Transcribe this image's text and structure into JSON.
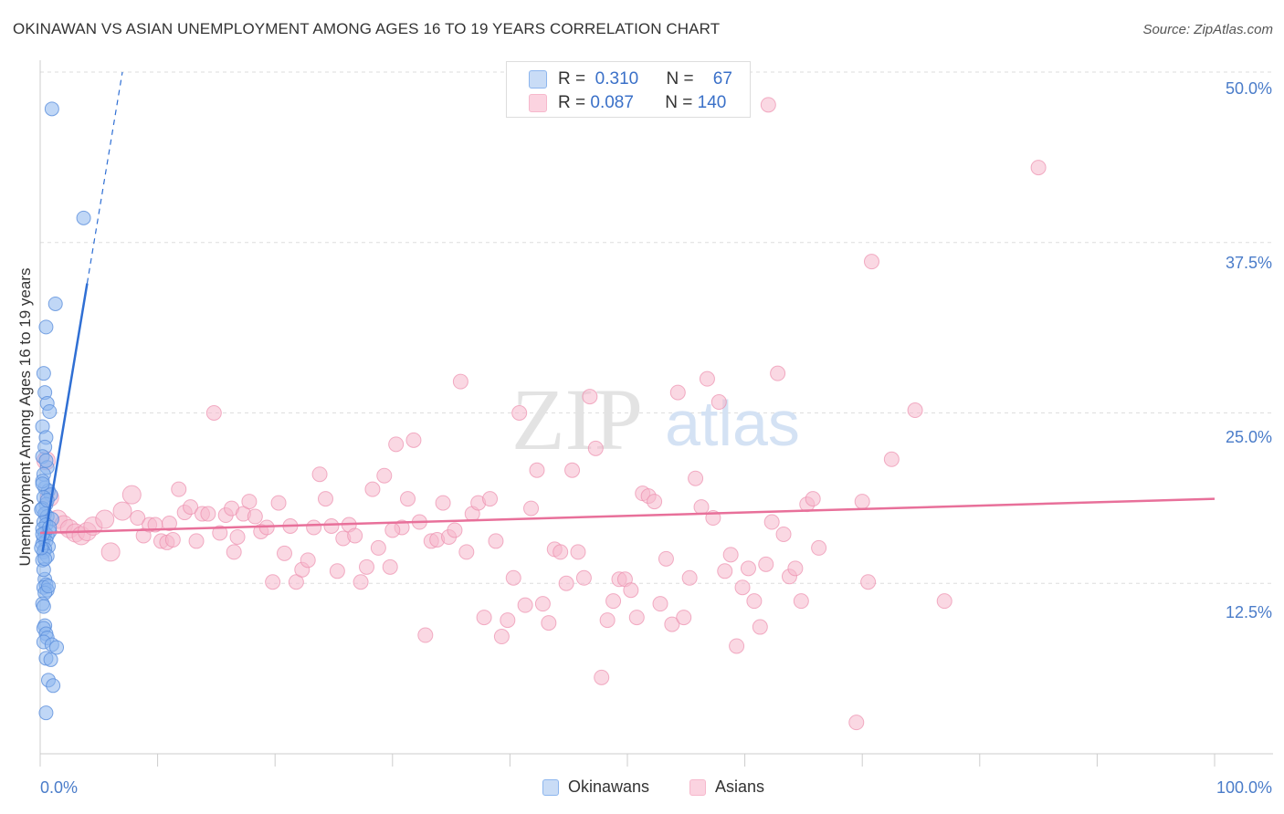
{
  "header": {
    "title": "OKINAWAN VS ASIAN UNEMPLOYMENT AMONG AGES 16 TO 19 YEARS CORRELATION CHART",
    "source": "Source: ZipAtlas.com"
  },
  "watermark": {
    "zip": "ZIP",
    "atlas": "atlas"
  },
  "legend_top": {
    "rows": [
      {
        "r_label": "R =",
        "r_value": "0.310",
        "n_label": "N =",
        "n_value": "67",
        "color": "#8db6ee"
      },
      {
        "r_label": "R =",
        "r_value": "0.087",
        "n_label": "N =",
        "n_value": "140",
        "color": "#f6b8cc"
      }
    ]
  },
  "legend_bottom": {
    "items": [
      {
        "label": "Okinawans",
        "color": "#8db6ee"
      },
      {
        "label": "Asians",
        "color": "#f6b8cc"
      }
    ]
  },
  "colors": {
    "okinawan_fill": "#8db6ee",
    "okinawan_stroke": "#5b8fdc",
    "okinawan_line": "#2f6fd4",
    "asian_fill": "#f6b8cc",
    "asian_stroke": "#ec8fae",
    "asian_line": "#e8709a",
    "tick_label": "#4a7cc9",
    "grid": "#dddddd"
  },
  "chart_data": {
    "type": "scatter",
    "title": "OKINAWAN VS ASIAN UNEMPLOYMENT AMONG AGES 16 TO 19 YEARS CORRELATION CHART",
    "xlabel": "",
    "ylabel": "Unemployment Among Ages 16 to 19 years",
    "xlim": [
      0,
      100
    ],
    "ylim": [
      0,
      50
    ],
    "x_tick_labels": [
      "0.0%",
      "100.0%"
    ],
    "y_ticks": [
      12.5,
      25.0,
      37.5,
      50.0
    ],
    "y_tick_labels": [
      "12.5%",
      "25.0%",
      "37.5%",
      "50.0%"
    ],
    "grid": true,
    "series": [
      {
        "name": "Okinawans",
        "r": 0.31,
        "n": 67,
        "trend": {
          "x0": 0.2,
          "y0": 14.8,
          "x1": 4.0,
          "y1": 34.5,
          "dash_to": {
            "x": 7.0,
            "y": 50.0
          }
        },
        "points": [
          [
            1.0,
            47.3
          ],
          [
            3.7,
            39.3
          ],
          [
            1.3,
            33.0
          ],
          [
            0.5,
            31.3
          ],
          [
            0.3,
            27.9
          ],
          [
            0.4,
            26.5
          ],
          [
            0.6,
            25.7
          ],
          [
            0.8,
            25.1
          ],
          [
            0.2,
            24.0
          ],
          [
            0.5,
            23.2
          ],
          [
            0.4,
            22.5
          ],
          [
            0.2,
            21.8
          ],
          [
            0.6,
            21.0
          ],
          [
            0.3,
            20.5
          ],
          [
            0.4,
            19.5
          ],
          [
            0.7,
            19.3
          ],
          [
            0.9,
            19.0
          ],
          [
            0.3,
            18.8
          ],
          [
            0.5,
            18.3
          ],
          [
            0.2,
            18.0
          ],
          [
            0.4,
            17.6
          ],
          [
            0.6,
            17.4
          ],
          [
            1.0,
            17.2
          ],
          [
            0.3,
            17.0
          ],
          [
            0.5,
            16.8
          ],
          [
            0.2,
            16.5
          ],
          [
            0.8,
            16.3
          ],
          [
            0.4,
            16.2
          ],
          [
            0.6,
            16.0
          ],
          [
            0.3,
            15.8
          ],
          [
            0.5,
            15.6
          ],
          [
            0.2,
            15.4
          ],
          [
            0.7,
            15.2
          ],
          [
            0.4,
            15.0
          ],
          [
            0.3,
            14.8
          ],
          [
            0.6,
            14.5
          ],
          [
            0.2,
            14.2
          ],
          [
            0.4,
            12.8
          ],
          [
            0.5,
            12.4
          ],
          [
            0.3,
            12.2
          ],
          [
            0.6,
            12.0
          ],
          [
            0.4,
            11.8
          ],
          [
            0.2,
            11.0
          ],
          [
            0.4,
            9.4
          ],
          [
            0.3,
            9.2
          ],
          [
            0.5,
            8.8
          ],
          [
            0.6,
            8.5
          ],
          [
            0.3,
            8.2
          ],
          [
            1.0,
            8.0
          ],
          [
            1.4,
            7.8
          ],
          [
            0.5,
            7.0
          ],
          [
            0.9,
            6.9
          ],
          [
            0.7,
            5.4
          ],
          [
            1.1,
            5.0
          ],
          [
            0.5,
            3.0
          ],
          [
            0.2,
            20.0
          ],
          [
            0.3,
            13.5
          ],
          [
            0.1,
            17.9
          ],
          [
            0.7,
            12.3
          ],
          [
            0.2,
            16.1
          ],
          [
            0.4,
            14.3
          ],
          [
            0.3,
            10.8
          ],
          [
            0.6,
            18.6
          ],
          [
            0.1,
            15.1
          ],
          [
            0.5,
            21.5
          ],
          [
            0.8,
            16.6
          ],
          [
            0.2,
            19.8
          ]
        ]
      },
      {
        "name": "Asians",
        "r": 0.087,
        "n": 140,
        "trend": {
          "x0": 0,
          "y0": 16.2,
          "x1": 100,
          "y1": 18.7
        },
        "points": [
          [
            0.5,
            21.5
          ],
          [
            0.8,
            18.8
          ],
          [
            1.5,
            17.2
          ],
          [
            2.0,
            16.8
          ],
          [
            2.5,
            16.5
          ],
          [
            3.0,
            16.2
          ],
          [
            3.5,
            16.0
          ],
          [
            4.0,
            16.3
          ],
          [
            4.5,
            16.7
          ],
          [
            5.5,
            17.2
          ],
          [
            6.0,
            14.8
          ],
          [
            7.0,
            17.8
          ],
          [
            7.8,
            19.0
          ],
          [
            8.3,
            17.3
          ],
          [
            8.8,
            16.0
          ],
          [
            9.3,
            16.8
          ],
          [
            9.8,
            16.8
          ],
          [
            10.3,
            15.6
          ],
          [
            10.8,
            15.5
          ],
          [
            11.3,
            15.7
          ],
          [
            11.8,
            19.4
          ],
          [
            12.3,
            17.7
          ],
          [
            12.8,
            18.1
          ],
          [
            13.3,
            15.6
          ],
          [
            13.8,
            17.6
          ],
          [
            14.3,
            17.6
          ],
          [
            14.8,
            25.0
          ],
          [
            15.3,
            16.2
          ],
          [
            15.8,
            17.5
          ],
          [
            16.3,
            18.0
          ],
          [
            16.8,
            15.9
          ],
          [
            17.3,
            17.6
          ],
          [
            17.8,
            18.5
          ],
          [
            18.3,
            17.4
          ],
          [
            18.8,
            16.3
          ],
          [
            19.3,
            16.6
          ],
          [
            19.8,
            12.6
          ],
          [
            20.3,
            18.4
          ],
          [
            20.8,
            14.7
          ],
          [
            21.3,
            16.7
          ],
          [
            21.8,
            12.6
          ],
          [
            22.3,
            13.5
          ],
          [
            22.8,
            14.2
          ],
          [
            23.3,
            16.6
          ],
          [
            23.8,
            20.5
          ],
          [
            24.3,
            18.7
          ],
          [
            24.8,
            16.7
          ],
          [
            25.3,
            13.4
          ],
          [
            25.8,
            15.8
          ],
          [
            26.3,
            16.8
          ],
          [
            26.8,
            16.0
          ],
          [
            27.3,
            12.6
          ],
          [
            27.8,
            13.7
          ],
          [
            28.3,
            19.4
          ],
          [
            28.8,
            15.1
          ],
          [
            29.3,
            20.4
          ],
          [
            29.8,
            13.7
          ],
          [
            30.3,
            22.7
          ],
          [
            30.8,
            16.6
          ],
          [
            31.3,
            18.7
          ],
          [
            31.8,
            23.0
          ],
          [
            32.3,
            17.0
          ],
          [
            32.8,
            8.7
          ],
          [
            33.3,
            15.6
          ],
          [
            33.8,
            15.7
          ],
          [
            34.3,
            18.4
          ],
          [
            34.8,
            15.9
          ],
          [
            35.3,
            16.4
          ],
          [
            35.8,
            27.3
          ],
          [
            36.3,
            14.8
          ],
          [
            36.8,
            17.6
          ],
          [
            37.3,
            18.4
          ],
          [
            37.8,
            10.0
          ],
          [
            38.3,
            18.7
          ],
          [
            38.8,
            15.6
          ],
          [
            39.3,
            8.6
          ],
          [
            39.8,
            9.8
          ],
          [
            40.3,
            12.9
          ],
          [
            40.8,
            25.0
          ],
          [
            41.3,
            10.9
          ],
          [
            41.8,
            18.0
          ],
          [
            42.3,
            20.8
          ],
          [
            42.8,
            11.0
          ],
          [
            43.3,
            9.6
          ],
          [
            43.8,
            15.0
          ],
          [
            44.3,
            14.8
          ],
          [
            44.8,
            12.5
          ],
          [
            45.3,
            20.8
          ],
          [
            45.8,
            14.8
          ],
          [
            46.3,
            12.9
          ],
          [
            46.8,
            26.2
          ],
          [
            47.3,
            22.4
          ],
          [
            47.8,
            5.6
          ],
          [
            48.3,
            9.8
          ],
          [
            48.8,
            11.2
          ],
          [
            49.3,
            12.8
          ],
          [
            49.8,
            12.8
          ],
          [
            50.3,
            12.0
          ],
          [
            50.8,
            10.0
          ],
          [
            51.3,
            19.1
          ],
          [
            51.8,
            18.9
          ],
          [
            52.3,
            18.5
          ],
          [
            52.8,
            11.0
          ],
          [
            53.3,
            14.3
          ],
          [
            53.8,
            9.5
          ],
          [
            54.3,
            26.5
          ],
          [
            54.8,
            10.0
          ],
          [
            55.3,
            12.9
          ],
          [
            55.8,
            20.2
          ],
          [
            56.3,
            18.1
          ],
          [
            56.8,
            27.5
          ],
          [
            57.3,
            17.3
          ],
          [
            57.8,
            25.8
          ],
          [
            58.3,
            13.4
          ],
          [
            58.8,
            14.6
          ],
          [
            59.3,
            7.9
          ],
          [
            59.8,
            12.2
          ],
          [
            60.3,
            13.6
          ],
          [
            60.8,
            11.2
          ],
          [
            61.3,
            9.3
          ],
          [
            61.8,
            13.9
          ],
          [
            62.3,
            17.0
          ],
          [
            62.8,
            27.9
          ],
          [
            63.3,
            16.1
          ],
          [
            63.8,
            13.0
          ],
          [
            64.3,
            13.6
          ],
          [
            64.8,
            11.2
          ],
          [
            65.3,
            18.3
          ],
          [
            65.8,
            18.7
          ],
          [
            66.3,
            15.1
          ],
          [
            69.5,
            2.3
          ],
          [
            70.0,
            18.5
          ],
          [
            70.5,
            12.6
          ],
          [
            70.8,
            36.1
          ],
          [
            72.5,
            21.6
          ],
          [
            74.5,
            25.2
          ],
          [
            77.0,
            11.2
          ],
          [
            62.0,
            47.6
          ],
          [
            85.0,
            43.0
          ],
          [
            16.5,
            14.8
          ],
          [
            11.0,
            16.9
          ],
          [
            30.0,
            16.4
          ]
        ]
      }
    ]
  },
  "axis_labels": {
    "x_left": "0.0%",
    "x_right": "100.0%",
    "y_12": "12.5%",
    "y_25": "25.0%",
    "y_37": "37.5%",
    "y_50": "50.0%"
  }
}
